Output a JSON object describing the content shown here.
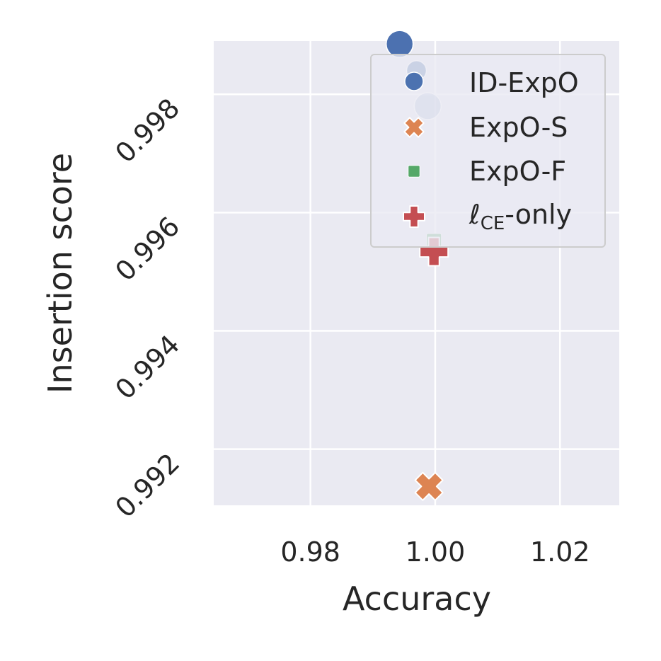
{
  "chart_data": {
    "type": "scatter",
    "title": "",
    "xlabel": "Accuracy",
    "ylabel": "Insertion score",
    "xlim": [
      0.9645,
      1.0295
    ],
    "ylim": [
      0.99105,
      0.9989
    ],
    "xticks": [
      0.98,
      1.0,
      1.02
    ],
    "xtick_labels": [
      "0.98",
      "1.00",
      "1.02"
    ],
    "yticks": [
      0.992,
      0.994,
      0.996,
      0.998
    ],
    "ytick_labels": [
      "0.992",
      "0.994",
      "0.996",
      "0.998"
    ],
    "grid": true,
    "legend_position": "top-right",
    "series": [
      {
        "name": "ID-ExpO",
        "marker": "circle",
        "color": "#4c72b0",
        "points": [
          {
            "x": 0.9943,
            "y": 0.99885,
            "size": "large",
            "alpha": 1.0
          },
          {
            "x": 0.9943,
            "y": 0.99885,
            "size": "large",
            "alpha": 0.6
          },
          {
            "x": 0.997,
            "y": 0.9984,
            "size": "small",
            "alpha": 1.0
          },
          {
            "x": 0.9988,
            "y": 0.9978,
            "size": "large",
            "alpha": 0.35
          }
        ]
      },
      {
        "name": "ExpO-S",
        "marker": "x",
        "color": "#dd8452",
        "points": [
          {
            "x": 0.999,
            "y": 0.99137,
            "size": "medium",
            "alpha": 1.0
          }
        ]
      },
      {
        "name": "ExpO-F",
        "marker": "square",
        "color": "#55a868",
        "points": [
          {
            "x": 0.9998,
            "y": 0.99552,
            "size": "small",
            "alpha": 0.9
          }
        ]
      },
      {
        "name": "ℓCE-only",
        "marker": "plus",
        "color": "#c44e52",
        "points": [
          {
            "x": 0.9998,
            "y": 0.99534,
            "size": "medium",
            "alpha": 1.0
          }
        ]
      }
    ]
  },
  "legend": {
    "items": [
      {
        "label": "ID-ExpO",
        "marker": "circle",
        "color": "#4c72b0"
      },
      {
        "label": "ExpO-S",
        "marker": "x",
        "color": "#dd8452"
      },
      {
        "label": "ExpO-F",
        "marker": "square",
        "color": "#55a868"
      },
      {
        "label_main": "ℓ",
        "label_sub": "CE",
        "label_rest": "-only",
        "marker": "plus",
        "color": "#c44e52"
      }
    ]
  },
  "colors": {
    "plot_background": "#eaeaf2",
    "grid": "#ffffff",
    "text": "#262626"
  }
}
